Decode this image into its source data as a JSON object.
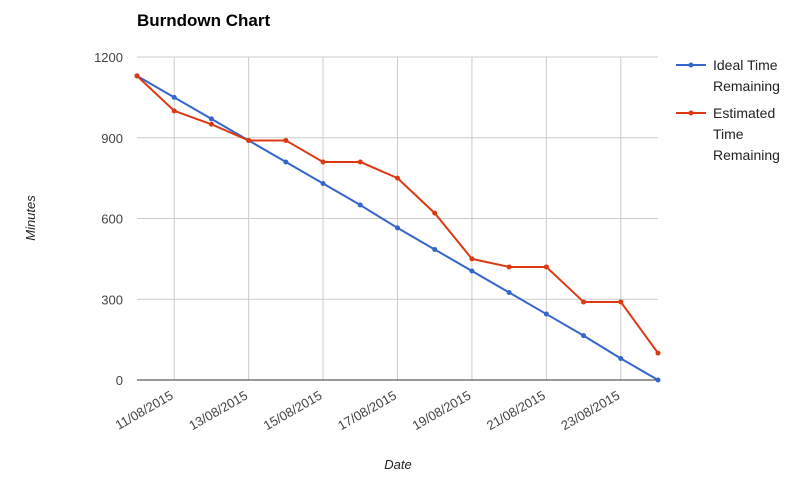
{
  "chart_data": {
    "type": "line",
    "title": "Burndown Chart",
    "xlabel": "Date",
    "ylabel": "Minutes",
    "x": [
      "10/08/2015",
      "11/08/2015",
      "12/08/2015",
      "13/08/2015",
      "14/08/2015",
      "15/08/2015",
      "16/08/2015",
      "17/08/2015",
      "18/08/2015",
      "19/08/2015",
      "20/08/2015",
      "21/08/2015",
      "22/08/2015",
      "23/08/2015",
      "24/08/2015"
    ],
    "x_tick_labels": [
      "11/08/2015",
      "13/08/2015",
      "15/08/2015",
      "17/08/2015",
      "19/08/2015",
      "21/08/2015",
      "23/08/2015"
    ],
    "ylim": [
      0,
      1200
    ],
    "y_ticks": [
      0,
      300,
      600,
      900,
      1200
    ],
    "grid": true,
    "legend_position": "right",
    "series": [
      {
        "name": "Ideal Time Remaining",
        "color": "#3366cc",
        "values": [
          1130,
          1050,
          970,
          890,
          810,
          730,
          650,
          565,
          485,
          405,
          325,
          245,
          165,
          80,
          0
        ]
      },
      {
        "name": "Estimated Time Remaining",
        "color": "#dc3912",
        "values": [
          1130,
          1000,
          950,
          890,
          890,
          810,
          810,
          750,
          620,
          450,
          420,
          420,
          290,
          290,
          100
        ]
      }
    ]
  }
}
